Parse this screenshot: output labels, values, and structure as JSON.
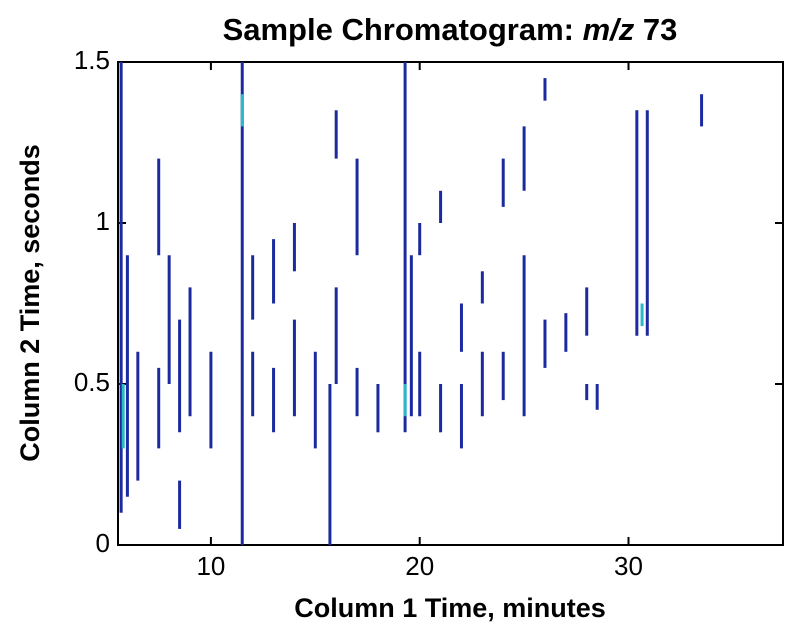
{
  "chart_data": {
    "type": "contour",
    "title": [
      "Sample Chromatogram:",
      "m/z",
      "73"
    ],
    "x_label": "Column 1 Time, minutes",
    "y_label": "Column 2 Time, seconds",
    "xlim": [
      5.55,
      37.4
    ],
    "ylim": [
      0,
      1.5
    ],
    "xticks": [
      10,
      20,
      30
    ],
    "yticks": [
      0,
      0.5,
      1,
      1.5
    ],
    "contours": [
      {
        "color": "#1c2aa0",
        "segments": [
          {
            "x": 5.7,
            "y0": 0.1,
            "y1": 1.5
          },
          {
            "x": 6.0,
            "y0": 0.15,
            "y1": 0.9
          },
          {
            "x": 6.5,
            "y0": 0.2,
            "y1": 0.6
          },
          {
            "x": 7.5,
            "y0": 0.3,
            "y1": 0.55
          },
          {
            "x": 7.5,
            "y0": 0.9,
            "y1": 1.2
          },
          {
            "x": 8.0,
            "y0": 0.5,
            "y1": 0.9
          },
          {
            "x": 8.5,
            "y0": 0.35,
            "y1": 0.7
          },
          {
            "x": 8.5,
            "y0": 0.05,
            "y1": 0.2
          },
          {
            "x": 9.0,
            "y0": 0.4,
            "y1": 0.8
          },
          {
            "x": 10.0,
            "y0": 0.3,
            "y1": 0.6
          },
          {
            "x": 11.5,
            "y0": 0,
            "y1": 1.5
          },
          {
            "x": 12.0,
            "y0": 0.4,
            "y1": 0.6
          },
          {
            "x": 12.0,
            "y0": 0.7,
            "y1": 0.9
          },
          {
            "x": 13.0,
            "y0": 0.35,
            "y1": 0.55
          },
          {
            "x": 13.0,
            "y0": 0.75,
            "y1": 0.95
          },
          {
            "x": 14.0,
            "y0": 0.4,
            "y1": 0.7
          },
          {
            "x": 14.0,
            "y0": 0.85,
            "y1": 1.0
          },
          {
            "x": 15.0,
            "y0": 0.3,
            "y1": 0.6
          },
          {
            "x": 15.7,
            "y0": 0,
            "y1": 0.5
          },
          {
            "x": 16.0,
            "y0": 0.5,
            "y1": 0.8
          },
          {
            "x": 16.0,
            "y0": 1.2,
            "y1": 1.35
          },
          {
            "x": 17.0,
            "y0": 0.4,
            "y1": 0.55
          },
          {
            "x": 17.0,
            "y0": 0.9,
            "y1": 1.2
          },
          {
            "x": 18.0,
            "y0": 0.35,
            "y1": 0.5
          },
          {
            "x": 19.3,
            "y0": 0.35,
            "y1": 1.5
          },
          {
            "x": 19.6,
            "y0": 0.4,
            "y1": 0.9
          },
          {
            "x": 20.0,
            "y0": 0.4,
            "y1": 0.6
          },
          {
            "x": 20.0,
            "y0": 0.9,
            "y1": 1.0
          },
          {
            "x": 21.0,
            "y0": 0.35,
            "y1": 0.5
          },
          {
            "x": 21.0,
            "y0": 1.0,
            "y1": 1.1
          },
          {
            "x": 22.0,
            "y0": 0.3,
            "y1": 0.5
          },
          {
            "x": 22.0,
            "y0": 0.6,
            "y1": 0.75
          },
          {
            "x": 23.0,
            "y0": 0.4,
            "y1": 0.6
          },
          {
            "x": 23.0,
            "y0": 0.75,
            "y1": 0.85
          },
          {
            "x": 24.0,
            "y0": 0.45,
            "y1": 0.6
          },
          {
            "x": 24.0,
            "y0": 1.05,
            "y1": 1.2
          },
          {
            "x": 25.0,
            "y0": 0.4,
            "y1": 0.9
          },
          {
            "x": 25.0,
            "y0": 1.1,
            "y1": 1.3
          },
          {
            "x": 26.0,
            "y0": 0.55,
            "y1": 0.7
          },
          {
            "x": 26.0,
            "y0": 1.38,
            "y1": 1.45
          },
          {
            "x": 27.0,
            "y0": 0.6,
            "y1": 0.72
          },
          {
            "x": 28.0,
            "y0": 0.45,
            "y1": 0.5
          },
          {
            "x": 28.0,
            "y0": 0.65,
            "y1": 0.8
          },
          {
            "x": 28.5,
            "y0": 0.42,
            "y1": 0.5
          },
          {
            "x": 30.4,
            "y0": 0.65,
            "y1": 1.35
          },
          {
            "x": 30.9,
            "y0": 0.65,
            "y1": 1.35
          },
          {
            "x": 33.5,
            "y0": 1.3,
            "y1": 1.4
          }
        ]
      },
      {
        "color": "#2db7c9",
        "segments": [
          {
            "x": 5.8,
            "y0": 0.3,
            "y1": 0.5
          },
          {
            "x": 11.5,
            "y0": 1.3,
            "y1": 1.4
          },
          {
            "x": 19.3,
            "y0": 0.4,
            "y1": 0.5
          },
          {
            "x": 30.65,
            "y0": 0.68,
            "y1": 0.75
          }
        ]
      }
    ]
  }
}
